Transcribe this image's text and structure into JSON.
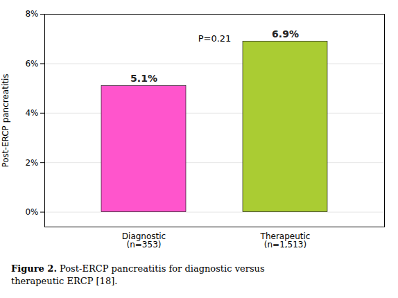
{
  "chart_data": {
    "type": "bar",
    "categories": [
      "Diagnostic\n(n=353)",
      "Therapeutic\n(n=1,513)"
    ],
    "values": [
      5.1,
      6.9
    ],
    "value_labels": [
      "5.1%",
      "6.9%"
    ],
    "data_labels": true,
    "colors": [
      "#FF55CC",
      "#AACC33"
    ],
    "ylabel": "Post-ERCP pancreatitis",
    "ylim": [
      -0.6,
      8
    ],
    "yticks": [
      {
        "value": 0,
        "label": "0%"
      },
      {
        "value": 2,
        "label": "2%"
      },
      {
        "value": 4,
        "label": "4%"
      },
      {
        "value": 6,
        "label": "6%"
      },
      {
        "value": 8,
        "label": "8%"
      }
    ],
    "grid": true,
    "annotations": [
      "P=0.21"
    ],
    "caption_bold": "Figure 2.",
    "caption": "Post-ERCP pancreatitis for diagnostic versus\ntherapeutic ERCP [18]."
  }
}
